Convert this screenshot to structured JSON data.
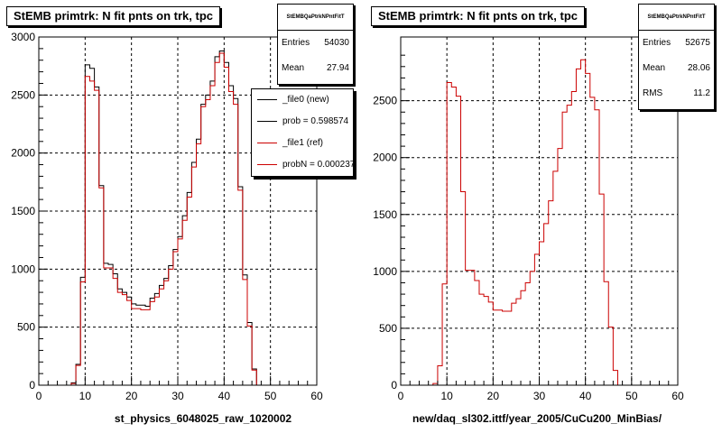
{
  "chart_data": [
    {
      "type": "histogram",
      "title": "StEMB primtrk: N fit pnts on trk, tpc",
      "xlabel": "st_physics_6048025_raw_1020002",
      "ylabel": "",
      "xlim": [
        0,
        60
      ],
      "ylim": [
        0,
        3000
      ],
      "x_ticks": [
        0,
        10,
        20,
        30,
        40,
        50,
        60
      ],
      "y_ticks": [
        0,
        500,
        1000,
        1500,
        2000,
        2500,
        3000
      ],
      "grid": true,
      "legend_position": "top-right",
      "stats": {
        "header": "StEMBQaPtrkNPntFitT",
        "rows": [
          {
            "label": "Entries",
            "value": "54030"
          },
          {
            "label": "Mean",
            "value": "27.94"
          }
        ]
      },
      "legend": [
        {
          "label": "_file0 (new)",
          "color": "#000000"
        },
        {
          "label": "prob = 0.598574",
          "color": "#000000"
        },
        {
          "label": "_file1 (ref)",
          "color": "#cc0000"
        },
        {
          "label": "probN = 0.000237",
          "color": "#cc0000"
        }
      ],
      "bin_edges_start": 0,
      "bin_width": 1,
      "series": [
        {
          "name": "_file0 (new)",
          "color": "#000000",
          "values": [
            0,
            0,
            0,
            0,
            0,
            0,
            0,
            20,
            180,
            930,
            2760,
            2730,
            2570,
            1720,
            1050,
            1040,
            960,
            830,
            800,
            760,
            700,
            690,
            690,
            680,
            750,
            790,
            860,
            920,
            1030,
            1170,
            1280,
            1460,
            1660,
            1920,
            2120,
            2420,
            2500,
            2620,
            2830,
            2880,
            2780,
            2580,
            2470,
            1710,
            950,
            540,
            140,
            0,
            0,
            0,
            0,
            0,
            0,
            0,
            0,
            0,
            0,
            0,
            0,
            0
          ]
        },
        {
          "name": "_file1 (ref)",
          "color": "#cc0000",
          "values": [
            0,
            0,
            0,
            0,
            0,
            0,
            0,
            15,
            170,
            890,
            2660,
            2620,
            2540,
            1700,
            1010,
            1010,
            920,
            800,
            780,
            730,
            660,
            660,
            650,
            650,
            720,
            760,
            830,
            900,
            1000,
            1150,
            1260,
            1420,
            1620,
            1880,
            2080,
            2400,
            2460,
            2580,
            2780,
            2860,
            2740,
            2530,
            2420,
            1680,
            910,
            510,
            130,
            0,
            0,
            0,
            0,
            0,
            0,
            0,
            0,
            0,
            0,
            0,
            0,
            0
          ]
        }
      ]
    },
    {
      "type": "histogram",
      "title": "StEMB primtrk: N fit pnts on trk, tpc",
      "xlabel": "new/daq_sl302.ittf/year_2005/CuCu200_MinBias/",
      "ylabel": "",
      "xlim": [
        0,
        60
      ],
      "ylim": [
        0,
        3060
      ],
      "x_ticks": [
        0,
        10,
        20,
        30,
        40,
        50,
        60
      ],
      "y_ticks": [
        0,
        500,
        1000,
        1500,
        2000,
        2500
      ],
      "grid": true,
      "stats": {
        "header": "StEMBQaPtrkNPntFitT",
        "rows": [
          {
            "label": "Entries",
            "value": "52675"
          },
          {
            "label": "Mean",
            "value": "28.06"
          },
          {
            "label": "RMS",
            "value": "11.2"
          }
        ]
      },
      "bin_edges_start": 0,
      "bin_width": 1,
      "series": [
        {
          "name": "",
          "color": "#cc0000",
          "values": [
            0,
            0,
            0,
            0,
            0,
            0,
            0,
            15,
            170,
            890,
            2660,
            2620,
            2540,
            1700,
            1010,
            1010,
            920,
            800,
            780,
            730,
            660,
            660,
            650,
            650,
            720,
            760,
            830,
            900,
            1000,
            1150,
            1260,
            1420,
            1620,
            1880,
            2080,
            2400,
            2460,
            2580,
            2780,
            2860,
            2740,
            2530,
            2420,
            1680,
            910,
            510,
            130,
            0,
            0,
            0,
            0,
            0,
            0,
            0,
            0,
            0,
            0,
            0,
            0,
            0
          ]
        }
      ]
    }
  ]
}
